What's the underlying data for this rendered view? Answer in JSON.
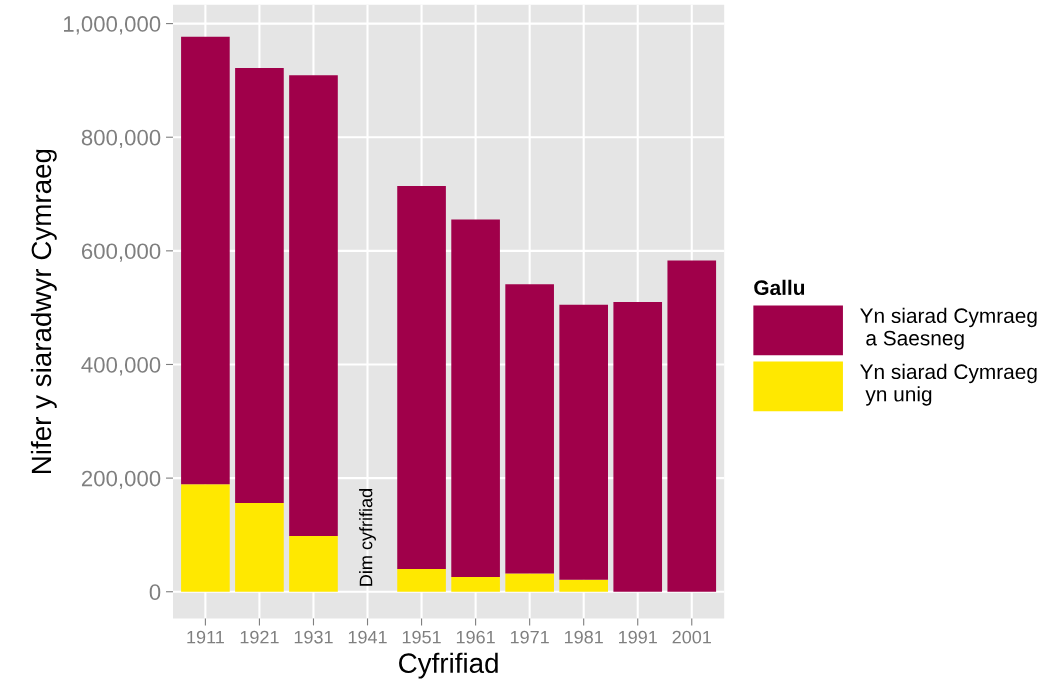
{
  "chart_data": {
    "type": "bar",
    "stacked": true,
    "xlabel": "Cyfrifiad",
    "ylabel": "Nifer y siaradwyr Cymraeg",
    "legend_title": "Gallu",
    "legend": "right",
    "grid": true,
    "categories": [
      "1911",
      "1921",
      "1931",
      "1941",
      "1951",
      "1961",
      "1971",
      "1981",
      "1991",
      "2001"
    ],
    "series": [
      {
        "name": "Yn siarad Cymraeg\n yn unig",
        "color": "#ffe800",
        "values": [
          189000,
          156000,
          98000,
          null,
          40000,
          26000,
          32000,
          21000,
          0,
          0
        ]
      },
      {
        "name": "Yn siarad Cymraeg\n a Saesneg",
        "color": "#a0004a",
        "values": [
          788000,
          766000,
          811000,
          null,
          674000,
          629000,
          509000,
          484000,
          510000,
          583000
        ]
      }
    ],
    "ylim": [
      -47000,
      1033000
    ],
    "yticks": [
      {
        "value": 0,
        "label": "0"
      },
      {
        "value": 200000,
        "label": "200,000"
      },
      {
        "value": 400000,
        "label": "400,000"
      },
      {
        "value": 600000,
        "label": "600,000"
      },
      {
        "value": 800000,
        "label": "800,000"
      },
      {
        "value": 1000000,
        "label": "1,000,000"
      }
    ],
    "annotations": [
      "Dim cyfrifiad"
    ]
  }
}
